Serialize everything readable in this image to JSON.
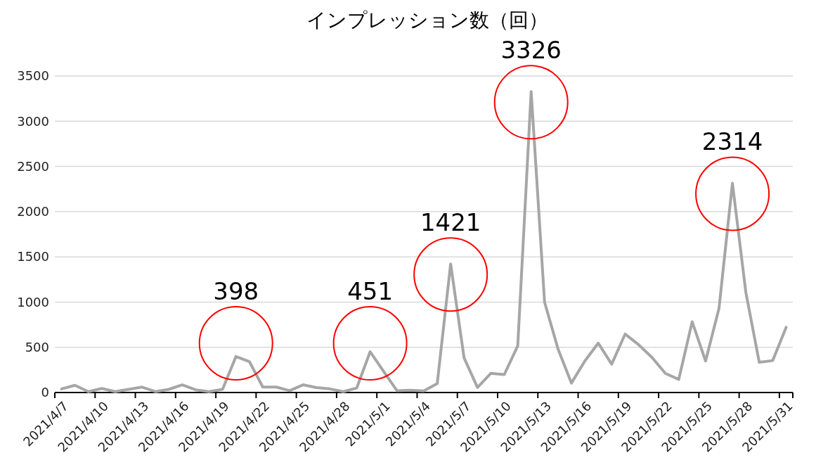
{
  "chart_data": {
    "type": "line",
    "title": "インプレッション数（回）",
    "categories": [
      "2021/4/7",
      null,
      null,
      "2021/4/10",
      null,
      null,
      "2021/4/13",
      null,
      null,
      "2021/4/16",
      null,
      null,
      "2021/4/19",
      null,
      null,
      "2021/4/22",
      null,
      null,
      "2021/4/25",
      null,
      null,
      "2021/4/28",
      null,
      null,
      "2021/5/1",
      null,
      null,
      "2021/5/4",
      null,
      null,
      "2021/5/7",
      null,
      null,
      "2021/5/10",
      null,
      null,
      "2021/5/13",
      null,
      null,
      "2021/5/16",
      null,
      null,
      "2021/5/19",
      null,
      null,
      "2021/5/22",
      null,
      null,
      "2021/5/25",
      null,
      null,
      "2021/5/28",
      null,
      null,
      "2021/5/31"
    ],
    "series": [
      {
        "color": "#a6a6a6",
        "values": [
          40,
          80,
          10,
          45,
          10,
          35,
          60,
          10,
          35,
          85,
          30,
          10,
          35,
          398,
          342,
          60,
          60,
          20,
          85,
          55,
          40,
          10,
          50,
          451,
          235,
          20,
          25,
          17,
          99,
          1421,
          383,
          56,
          212,
          199,
          516,
          3326,
          999,
          483,
          104,
          348,
          546,
          313,
          646,
          530,
          389,
          212,
          145,
          783,
          348,
          931,
          2314,
          1108,
          334,
          353,
          720
        ],
        "value_labels": [
          null,
          null,
          null,
          null,
          null,
          null,
          null,
          null,
          null,
          null,
          null,
          null,
          null,
          "398",
          null,
          null,
          null,
          null,
          null,
          null,
          null,
          null,
          null,
          "451",
          null,
          null,
          null,
          null,
          null,
          "1421",
          null,
          null,
          null,
          null,
          null,
          "3326",
          null,
          null,
          null,
          null,
          null,
          null,
          null,
          null,
          null,
          null,
          null,
          null,
          null,
          null,
          "2314",
          null,
          null,
          null,
          null
        ]
      }
    ],
    "ylim": [
      0,
      3500
    ],
    "yticks": [
      0,
      500,
      1000,
      1500,
      2000,
      2500,
      3000,
      3500
    ],
    "grid": "y",
    "marker": "none",
    "line_style": "solid"
  }
}
